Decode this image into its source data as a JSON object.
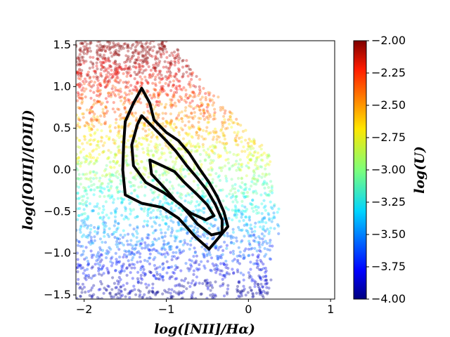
{
  "chart_data": {
    "type": "scatter",
    "title": "",
    "xlabel": "log([NII]/Hα)",
    "ylabel": "log([OIII]/[OII])",
    "xlim": [
      -2.1,
      1.05
    ],
    "ylim": [
      -1.55,
      1.55
    ],
    "xticks": [
      -2,
      -1,
      0,
      1
    ],
    "xtick_labels": [
      "−2",
      "−1",
      "0",
      "1"
    ],
    "yticks": [
      -1.5,
      -1.0,
      -0.5,
      0.0,
      0.5,
      1.0,
      1.5
    ],
    "ytick_labels": [
      "−1.5",
      "−1.0",
      "−0.5",
      "0.0",
      "0.5",
      "1.0",
      "1.5"
    ],
    "grid": false,
    "colorbar": {
      "label": "log(U)",
      "colormap": "jet",
      "range": [
        -4.0,
        -2.0
      ],
      "ticks": [
        -4.0,
        -3.75,
        -3.5,
        -3.25,
        -3.0,
        -2.75,
        -2.5,
        -2.25,
        -2.0
      ],
      "tick_labels": [
        "−4.00",
        "−3.75",
        "−3.50",
        "−3.25",
        "−3.00",
        "−2.75",
        "−2.50",
        "−2.25",
        "−2.00"
      ]
    },
    "scatter_region": {
      "description_x_extent": [
        -2.1,
        0.4
      ],
      "color_variable": "log(U)",
      "relation": "log([OIII]/[OII]) increases with log(U)"
    },
    "contours": [
      {
        "level": "outer",
        "points": [
          [
            -1.3,
            0.98
          ],
          [
            -1.2,
            0.8
          ],
          [
            -1.15,
            0.6
          ],
          [
            -1.0,
            0.45
          ],
          [
            -0.85,
            0.35
          ],
          [
            -0.72,
            0.2
          ],
          [
            -0.6,
            0.02
          ],
          [
            -0.48,
            -0.15
          ],
          [
            -0.38,
            -0.32
          ],
          [
            -0.3,
            -0.5
          ],
          [
            -0.25,
            -0.68
          ],
          [
            -0.35,
            -0.8
          ],
          [
            -0.48,
            -0.95
          ],
          [
            -0.65,
            -0.8
          ],
          [
            -0.85,
            -0.58
          ],
          [
            -1.05,
            -0.45
          ],
          [
            -1.3,
            -0.4
          ],
          [
            -1.5,
            -0.3
          ],
          [
            -1.53,
            0.0
          ],
          [
            -1.52,
            0.3
          ],
          [
            -1.5,
            0.58
          ],
          [
            -1.4,
            0.8
          ],
          [
            -1.3,
            0.98
          ]
        ]
      },
      {
        "level": "middle",
        "points": [
          [
            -1.3,
            0.65
          ],
          [
            -1.15,
            0.5
          ],
          [
            -1.0,
            0.35
          ],
          [
            -0.88,
            0.22
          ],
          [
            -0.75,
            0.05
          ],
          [
            -0.62,
            -0.1
          ],
          [
            -0.5,
            -0.25
          ],
          [
            -0.4,
            -0.42
          ],
          [
            -0.32,
            -0.6
          ],
          [
            -0.32,
            -0.75
          ],
          [
            -0.45,
            -0.78
          ],
          [
            -0.62,
            -0.65
          ],
          [
            -0.82,
            -0.42
          ],
          [
            -1.02,
            -0.28
          ],
          [
            -1.25,
            -0.15
          ],
          [
            -1.4,
            0.05
          ],
          [
            -1.42,
            0.3
          ],
          [
            -1.35,
            0.55
          ],
          [
            -1.3,
            0.65
          ]
        ]
      },
      {
        "level": "inner",
        "points": [
          [
            -1.2,
            0.12
          ],
          [
            -1.05,
            0.05
          ],
          [
            -0.9,
            -0.02
          ],
          [
            -0.78,
            -0.15
          ],
          [
            -0.62,
            -0.3
          ],
          [
            -0.5,
            -0.42
          ],
          [
            -0.42,
            -0.55
          ],
          [
            -0.52,
            -0.6
          ],
          [
            -0.7,
            -0.52
          ],
          [
            -0.88,
            -0.38
          ],
          [
            -1.02,
            -0.22
          ],
          [
            -1.18,
            -0.05
          ],
          [
            -1.2,
            0.12
          ]
        ]
      }
    ]
  }
}
